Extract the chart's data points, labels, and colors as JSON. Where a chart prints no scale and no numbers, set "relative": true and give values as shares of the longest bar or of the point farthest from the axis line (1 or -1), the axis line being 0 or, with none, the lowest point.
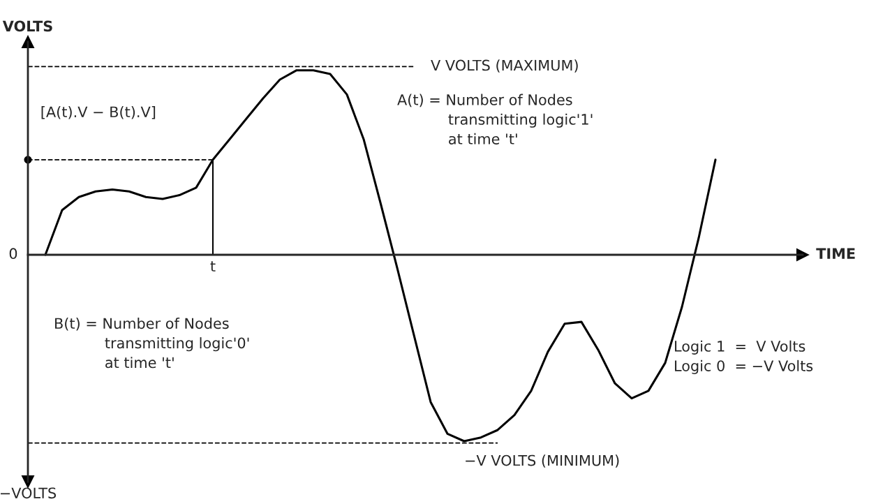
{
  "chart_data": {
    "type": "line",
    "relative": true,
    "ylabel": "VOLTS",
    "categories": [
      null,
      null,
      null,
      null,
      null,
      null,
      null,
      null,
      null,
      null,
      null,
      null,
      null,
      null,
      null,
      null,
      null,
      null,
      null,
      null,
      null,
      null,
      null,
      null,
      null,
      null,
      null,
      null,
      null,
      null,
      null,
      null,
      null,
      null,
      null,
      null,
      null,
      null,
      null,
      null,
      null
    ],
    "series": [
      {
        "color": "#000000",
        "values": [
          0,
          0.24,
          0.31,
          0.34,
          0.35,
          0.34,
          0.31,
          0.3,
          0.32,
          0.36,
          0.51,
          0.62,
          0.73,
          0.84,
          0.94,
          0.99,
          0.99,
          0.97,
          0.86,
          0.62,
          0.28,
          -0.07,
          -0.43,
          -0.79,
          -0.96,
          -1.0,
          -0.98,
          -0.94,
          -0.86,
          -0.73,
          -0.52,
          -0.37,
          -0.36,
          -0.51,
          -0.69,
          -0.77,
          -0.73,
          -0.58,
          -0.28,
          0.09,
          0.51
        ]
      }
    ],
    "ref_lines": [
      {
        "axis": "y",
        "value": 1.01,
        "label": "V VOLTS (MAXIMUM)",
        "line_style": "dashed"
      },
      {
        "axis": "y",
        "value": -1.01,
        "label": "−V VOLTS (MINIMUM)",
        "line_style": "dashed"
      },
      {
        "axis": "y",
        "value": 0.51,
        "label": "[A(t).V − B(t).V]",
        "line_style": "dashed"
      }
    ],
    "annotations": [
      "0",
      "−VOLTS",
      "TIME",
      "t",
      "A(t) = Number of Nodes\n           transmitting logic'1'\n           at time 't'",
      "B(t) = Number of Nodes\n           transmitting logic'0'\n           at time 't'",
      "Logic 1  =  V Volts\nLogic 0  = −V Volts"
    ],
    "legend": false,
    "marker": "none",
    "line_style": "solid"
  }
}
